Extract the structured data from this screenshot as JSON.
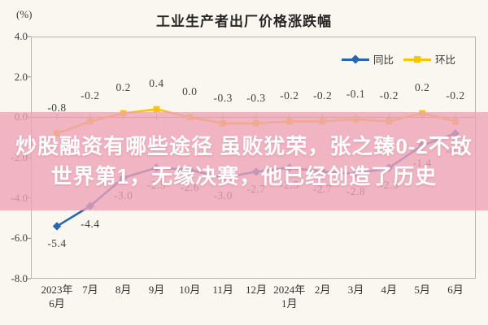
{
  "header": {
    "unit_label": "(%)",
    "title": "工业生产者出厂价格涨跌幅"
  },
  "legend": [
    {
      "name": "同比",
      "color": "#2767B0",
      "marker": "diamond"
    },
    {
      "name": "环比",
      "color": "#FBC303",
      "marker": "square"
    }
  ],
  "overlay": {
    "line1": "炒股融资有哪些途径 虽败犹荣，张之臻0-2不敌",
    "line2": "世界第1，无缘决赛，他已经创造了历史",
    "bg_color": "#EDA2B6"
  },
  "chart_data": {
    "type": "line",
    "title": "工业生产者出厂价格涨跌幅",
    "unit": "%",
    "categories": [
      "2023年6月",
      "7月",
      "8月",
      "9月",
      "10月",
      "11月",
      "12月",
      "2024年1月",
      "2月",
      "3月",
      "4月",
      "5月",
      "6月"
    ],
    "x_tick_labels": [
      "2023年\n6月",
      "7月",
      "8月",
      "9月",
      "10月",
      "11月",
      "12月",
      "2024年\n1月",
      "2月",
      "3月",
      "4月",
      "5月",
      "6月"
    ],
    "series": [
      {
        "name": "同比",
        "color": "#2767B0",
        "marker": "diamond",
        "label_position": "below",
        "values": [
          -5.4,
          -4.4,
          -3.0,
          -2.5,
          -2.6,
          -3.0,
          -2.7,
          -2.5,
          -2.7,
          -2.8,
          -2.5,
          -1.4,
          -0.8
        ]
      },
      {
        "name": "环比",
        "color": "#FBC303",
        "marker": "square",
        "label_position": "above",
        "values": [
          -0.8,
          -0.2,
          0.2,
          0.4,
          0.0,
          -0.3,
          -0.3,
          -0.2,
          -0.2,
          -0.1,
          -0.2,
          0.2,
          -0.2
        ]
      }
    ],
    "y_ticks": [
      4.0,
      2.0,
      0.0,
      -2.0,
      -4.0,
      -6.0,
      -8.0
    ],
    "ylim": [
      -8.0,
      4.0
    ],
    "zero_baseline": true,
    "grid": false,
    "legend_position": "top-right"
  }
}
